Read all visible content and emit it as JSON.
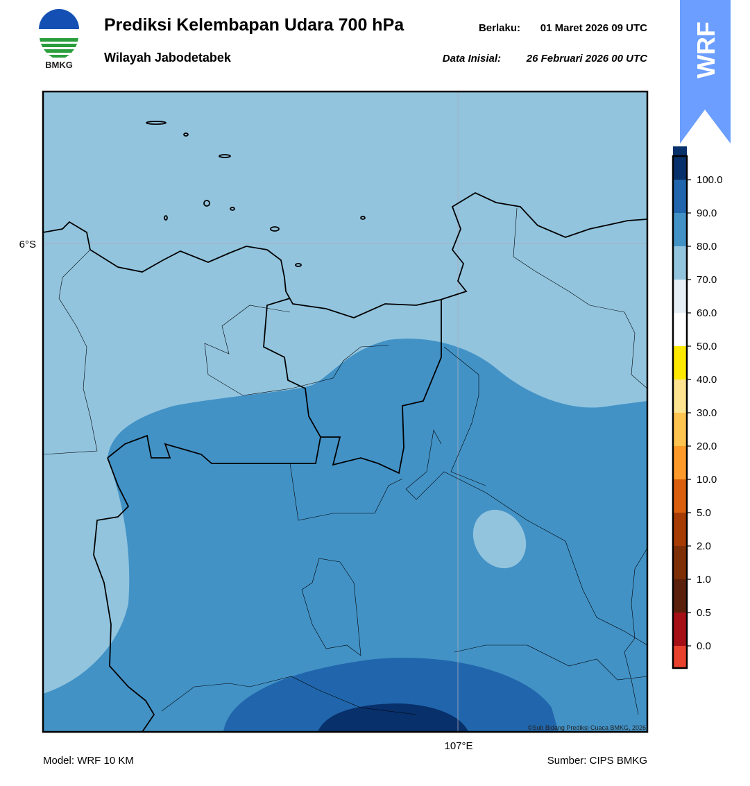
{
  "header": {
    "logo_text": "BMKG",
    "title": "Prediksi Kelembapan Udara 700 hPa",
    "subtitle": "Wilayah Jabodetabek",
    "valid_label": "Berlaku:",
    "valid_time": "01 Maret 2026 09 UTC",
    "init_label": "Data Inisial:",
    "init_time": "26 Februari 2026 00 UTC",
    "badge": "WRF"
  },
  "map": {
    "lat_label": "6°S",
    "lon_label": "107°E",
    "credit": "©Sub Bidang Prediksi Cuaca BMKG, 2026"
  },
  "colorbar": {
    "labels": [
      "0.0",
      "0.5",
      "1.0",
      "2.0",
      "5.0",
      "10.0",
      "20.0",
      "30.0",
      "40.0",
      "50.0",
      "60.0",
      "70.0",
      "80.0",
      "90.0",
      "100.0"
    ],
    "colors": [
      "#e8412e",
      "#a50f15",
      "#5a200c",
      "#7f2f06",
      "#a63b03",
      "#d95f0e",
      "#fd9a29",
      "#fec44f",
      "#fee391",
      "#fde800",
      "#ffffff",
      "#e6eef6",
      "#92c4de",
      "#4292c6",
      "#2166ac",
      "#08306b",
      "#2d004b"
    ]
  },
  "footer": {
    "model": "Model: WRF 10 KM",
    "source": "Sumber: CIPS BMKG"
  }
}
